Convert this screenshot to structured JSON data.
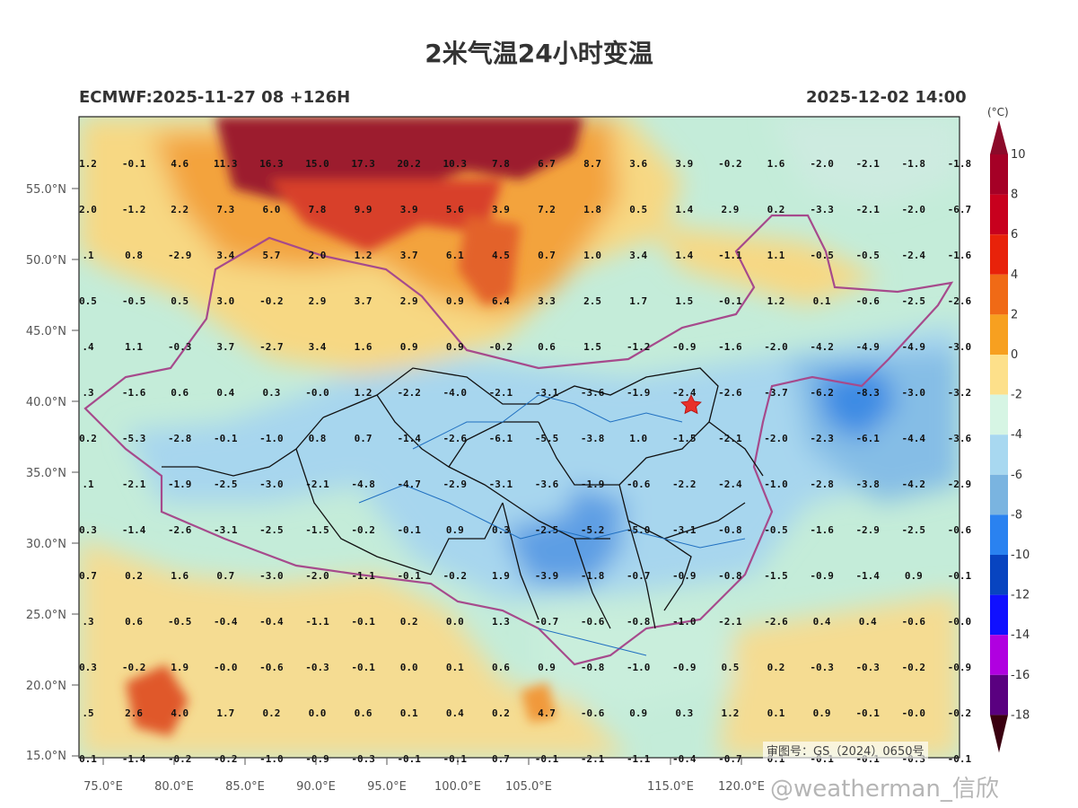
{
  "title": "2米气温24小时变温",
  "subtitle_left": "ECMWF:2025-11-27 08 +126H",
  "subtitle_right": "2025-12-02 14:00",
  "colorbar": {
    "unit": "(°C)",
    "labels": [
      "10",
      "8",
      "6",
      "4",
      "2",
      "0",
      "-2",
      "-4",
      "-6",
      "-8",
      "-10",
      "-12",
      "-14",
      "-16",
      "-18"
    ],
    "colors": [
      "#a50026",
      "#c8001e",
      "#e8220a",
      "#f06a16",
      "#f7a020",
      "#fde08a",
      "#d6f5e4",
      "#a8d8f0",
      "#7ab4e0",
      "#2a82f0",
      "#0844c0",
      "#1010ff",
      "#b000e0",
      "#5a0080",
      "#7a0a0a"
    ]
  },
  "axes": {
    "lat_labels": [
      "55.0°N",
      "50.0°N",
      "45.0°N",
      "40.0°N",
      "35.0°N",
      "30.0°N",
      "25.0°N",
      "20.0°N",
      "15.0°N"
    ],
    "lon_labels": [
      "75.0°E",
      "80.0°E",
      "85.0°E",
      "90.0°E",
      "95.0°E",
      "100.0°E",
      "105.0°E",
      "115.0°E",
      "120.0°E"
    ]
  },
  "grid_values": [
    [
      "1.2",
      "-0.1",
      "4.6",
      "11.3",
      "16.3",
      "15.0",
      "17.3",
      "20.2",
      "10.3",
      "7.8",
      "6.7",
      "8.7",
      "3.6",
      "3.9",
      "-0.2",
      "1.6",
      "-2.0",
      "-2.1",
      "-1.8",
      "-1.8"
    ],
    [
      "2.0",
      "-1.2",
      "2.2",
      "7.3",
      "6.0",
      "7.8",
      "9.9",
      "3.9",
      "5.6",
      "3.9",
      "7.2",
      "1.8",
      "0.5",
      "1.4",
      "2.9",
      "0.2",
      "-3.3",
      "-2.1",
      "-2.0",
      "-6.7"
    ],
    [
      ".1",
      "0.8",
      "-2.9",
      "3.4",
      "5.7",
      "2.0",
      "1.2",
      "3.7",
      "6.1",
      "4.5",
      "0.7",
      "1.0",
      "3.4",
      "1.4",
      "-1.1",
      "1.1",
      "-0.5",
      "-0.5",
      "-2.4",
      "-1.6"
    ],
    [
      "0.5",
      "-0.5",
      "0.5",
      "3.0",
      "-0.2",
      "2.9",
      "3.7",
      "2.9",
      "0.9",
      "6.4",
      "3.3",
      "2.5",
      "1.7",
      "1.5",
      "-0.1",
      "1.2",
      "0.1",
      "-0.6",
      "-2.5",
      "-2.6"
    ],
    [
      ".4",
      "1.1",
      "-0.3",
      "3.7",
      "-2.7",
      "3.4",
      "1.6",
      "0.9",
      "0.9",
      "-0.2",
      "0.6",
      "1.5",
      "-1.2",
      "-0.9",
      "-1.6",
      "-2.0",
      "-4.2",
      "-4.9",
      "-4.9",
      "-3.0"
    ],
    [
      ".3",
      "-1.6",
      "0.6",
      "0.4",
      "0.3",
      "-0.0",
      "1.2",
      "-2.2",
      "-4.0",
      "-2.1",
      "-3.1",
      "-3.6",
      "-1.9",
      "-2.4",
      "-2.6",
      "-3.7",
      "-6.2",
      "-8.3",
      "-3.0",
      "-3.2"
    ],
    [
      "0.2",
      "-5.3",
      "-2.8",
      "-0.1",
      "-1.0",
      "0.8",
      "0.7",
      "-1.4",
      "-2.6",
      "-6.1",
      "-5.5",
      "-3.8",
      "1.0",
      "-1.5",
      "-2.1",
      "-2.0",
      "-2.3",
      "-6.1",
      "-4.4",
      "-3.6"
    ],
    [
      ".1",
      "-2.1",
      "-1.9",
      "-2.5",
      "-3.0",
      "-2.1",
      "-4.8",
      "-4.7",
      "-2.9",
      "-3.1",
      "-3.6",
      "-1.9",
      "-0.6",
      "-2.2",
      "-2.4",
      "-1.0",
      "-2.8",
      "-3.8",
      "-4.2",
      "-2.9"
    ],
    [
      "0.3",
      "-1.4",
      "-2.6",
      "-3.1",
      "-2.5",
      "-1.5",
      "-0.2",
      "-0.1",
      "0.9",
      "0.3",
      "-2.5",
      "-5.2",
      "-5.0",
      "-3.1",
      "-0.8",
      "-0.5",
      "-1.6",
      "-2.9",
      "-2.5",
      "-0.6"
    ],
    [
      "0.7",
      "0.2",
      "1.6",
      "0.7",
      "-3.0",
      "-2.0",
      "-1.1",
      "-0.1",
      "-0.2",
      "1.9",
      "-3.9",
      "-1.8",
      "-0.7",
      "-0.9",
      "-0.8",
      "-1.5",
      "-0.9",
      "-1.4",
      "0.9",
      "-0.1"
    ],
    [
      ".3",
      "0.6",
      "-0.5",
      "-0.4",
      "-0.4",
      "-1.1",
      "-0.1",
      "0.2",
      "0.0",
      "1.3",
      "-0.7",
      "-0.6",
      "-0.8",
      "-1.0",
      "-2.1",
      "-2.6",
      "0.4",
      "0.4",
      "-0.6",
      "-0.0"
    ],
    [
      "0.3",
      "-0.2",
      "1.9",
      "-0.0",
      "-0.6",
      "-0.3",
      "-0.1",
      "0.0",
      "0.1",
      "0.6",
      "0.9",
      "-0.8",
      "-1.0",
      "-0.9",
      "0.5",
      "0.2",
      "-0.3",
      "-0.3",
      "-0.2",
      "-0.9"
    ],
    [
      ".5",
      "2.6",
      "4.0",
      "1.7",
      "0.2",
      "0.0",
      "0.6",
      "0.1",
      "0.4",
      "0.2",
      "4.7",
      "-0.6",
      "0.9",
      "0.3",
      "1.2",
      "0.1",
      "0.9",
      "-0.1",
      "-0.0",
      "-0.2"
    ],
    [
      "0.1",
      "-1.4",
      "-0.2",
      "-0.2",
      "-1.0",
      "-0.9",
      "-0.3",
      "-0.1",
      "-0.1",
      "0.7",
      "-0.1",
      "-2.1",
      "-1.1",
      "-0.4",
      "-0.7",
      "0.1",
      "-0.1",
      "-0.1",
      "-0.3",
      "-0.1"
    ]
  ],
  "approval_number": "审图号：GS（2024）0650号",
  "watermark": "@weatherman_信欣",
  "marker": "beijing-star"
}
